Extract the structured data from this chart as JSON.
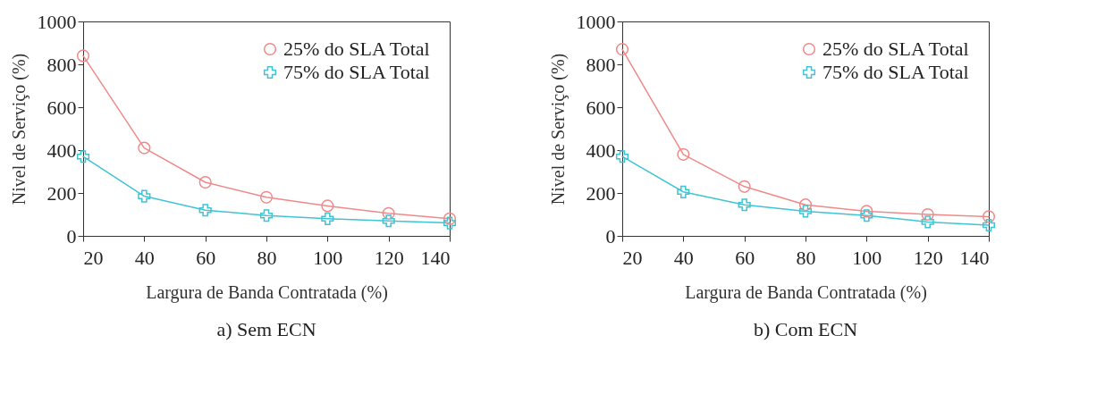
{
  "chart_data": [
    {
      "type": "line",
      "title": "a) Sem ECN",
      "xlabel": "Largura de Banda Contratada (%)",
      "ylabel": "Nivel de Serviço (%)",
      "x": [
        20,
        40,
        60,
        80,
        100,
        120,
        140
      ],
      "xlim": [
        20,
        140
      ],
      "xticks": [
        20,
        40,
        60,
        80,
        100,
        120,
        140
      ],
      "ylim": [
        0,
        1000
      ],
      "yticks": [
        0,
        200,
        400,
        600,
        800,
        1000
      ],
      "legend": "top right",
      "line_style": "solid",
      "series": [
        {
          "name": "25% do SLA Total",
          "color": "#f08a8a",
          "marker": "circle",
          "values": [
            840,
            410,
            250,
            180,
            140,
            105,
            80
          ]
        },
        {
          "name": "75% do SLA Total",
          "color": "#3fc4d4",
          "marker": "cross",
          "values": [
            370,
            185,
            120,
            95,
            80,
            70,
            60
          ]
        }
      ]
    },
    {
      "type": "line",
      "title": "b) Com ECN",
      "xlabel": "Largura de Banda Contratada (%)",
      "ylabel": "Nivel de Serviço (%)",
      "x": [
        20,
        40,
        60,
        80,
        100,
        120,
        140
      ],
      "xlim": [
        20,
        140
      ],
      "xticks": [
        20,
        40,
        60,
        80,
        100,
        120,
        140
      ],
      "ylim": [
        0,
        1000
      ],
      "yticks": [
        0,
        200,
        400,
        600,
        800,
        1000
      ],
      "legend": "top right",
      "line_style": "solid",
      "series": [
        {
          "name": "25% do SLA Total",
          "color": "#f08a8a",
          "marker": "circle",
          "values": [
            870,
            380,
            230,
            145,
            115,
            100,
            90
          ]
        },
        {
          "name": "75% do SLA Total",
          "color": "#3fc4d4",
          "marker": "cross",
          "values": [
            370,
            205,
            145,
            115,
            95,
            65,
            50
          ]
        }
      ]
    }
  ]
}
